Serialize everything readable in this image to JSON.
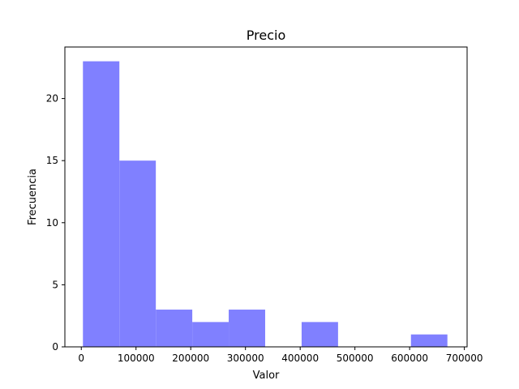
{
  "chart_data": {
    "type": "bar",
    "title": "Precio",
    "xlabel": "Valor",
    "ylabel": "Frecuencia",
    "xlim": [
      -30000,
      705000
    ],
    "ylim": [
      0,
      24.15
    ],
    "x_ticks": [
      0,
      100000,
      200000,
      300000,
      400000,
      500000,
      600000,
      700000
    ],
    "x_tick_labels": [
      "0",
      "100000",
      "200000",
      "300000",
      "400000",
      "500000",
      "600000",
      "700000"
    ],
    "y_ticks": [
      0,
      5,
      10,
      15,
      20
    ],
    "y_tick_labels": [
      "0",
      "5",
      "10",
      "15",
      "20"
    ],
    "bin_edges": [
      3000,
      69600,
      136200,
      202800,
      269400,
      336000,
      402600,
      469200,
      535800,
      602400,
      669000
    ],
    "values": [
      23,
      15,
      3,
      2,
      3,
      0,
      2,
      0,
      0,
      1
    ],
    "bar_color": "#8080ff",
    "grid": false,
    "legend": "none"
  }
}
